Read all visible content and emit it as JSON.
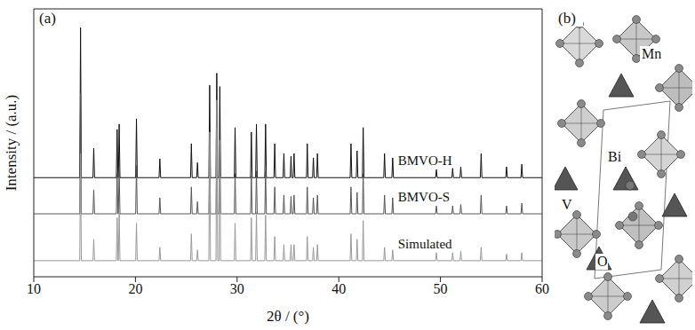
{
  "chart_data": {
    "type": "line",
    "annotations": [
      "(a)"
    ],
    "xlabel": "2θ / (°)",
    "ylabel": "Intensity / (a.u.)",
    "xlim": [
      10,
      60
    ],
    "xticks": [
      10,
      20,
      30,
      40,
      50,
      60
    ],
    "ylim": [
      0,
      100
    ],
    "tick_labels": "x",
    "grid": false,
    "x": [
      10,
      14.52,
      14.6,
      14.68,
      15.82,
      15.9,
      15.98,
      18.12,
      18.2,
      18.28,
      18.32,
      18.4,
      18.48,
      20.02,
      20.1,
      20.18,
      22.32,
      22.4,
      22.48,
      25.42,
      25.5,
      25.58,
      26.02,
      26.1,
      26.18,
      27.22,
      27.3,
      27.38,
      27.92,
      28,
      28.08,
      28.22,
      28.3,
      28.38,
      29.72,
      29.8,
      29.88,
      31.32,
      31.4,
      31.48,
      31.82,
      31.9,
      31.98,
      32.72,
      32.8,
      32.88,
      33.62,
      33.7,
      33.78,
      34.52,
      34.6,
      34.68,
      35.22,
      35.3,
      35.38,
      35.52,
      35.6,
      35.68,
      36.82,
      36.9,
      36.98,
      37.42,
      37.5,
      37.58,
      37.82,
      37.9,
      37.98,
      41.12,
      41.2,
      41.28,
      41.72,
      41.8,
      41.88,
      42.32,
      42.4,
      42.48,
      44.42,
      44.5,
      44.58,
      45.22,
      45.3,
      45.38,
      49.52,
      49.6,
      49.68,
      51.12,
      51.2,
      51.28,
      51.92,
      52,
      52.08,
      53.92,
      54,
      54.08,
      56.42,
      56.5,
      56.58,
      57.92,
      58,
      58.08,
      60
    ],
    "series": [
      {
        "name": "BMVO-H",
        "color": "#111111",
        "values": [
          37,
          37,
          93,
          37,
          37,
          48,
          37,
          37,
          55,
          37,
          37,
          57,
          37,
          37,
          59,
          37,
          37,
          44,
          37,
          37,
          49.7,
          37,
          37,
          42.6,
          37,
          37,
          71.5,
          37,
          37,
          76,
          37,
          37,
          71,
          37,
          37,
          55.7,
          37,
          37,
          54,
          37,
          37,
          57,
          37,
          37,
          57,
          37,
          37,
          49.7,
          37,
          37,
          46,
          37,
          37,
          45,
          37,
          37,
          46,
          37,
          37,
          49.7,
          37,
          37,
          44.4,
          37,
          37,
          46,
          37,
          37,
          49.7,
          37,
          37,
          47,
          37,
          37,
          55.7,
          37,
          37,
          46,
          37,
          37,
          44.4,
          37,
          37,
          40,
          37,
          37,
          40.5,
          37,
          37,
          41,
          37,
          37,
          46,
          37,
          37,
          41,
          37,
          37,
          42,
          37,
          37
        ]
      },
      {
        "name": "BMVO-S",
        "color": "#555555",
        "values": [
          23.5,
          23.5,
          68.5,
          23.5,
          23.5,
          32.5,
          23.5,
          23.5,
          38.5,
          23.5,
          23.5,
          39.5,
          23.5,
          23.5,
          41.5,
          23.5,
          23.5,
          29.5,
          23.5,
          23.5,
          33.5,
          23.5,
          23.5,
          28,
          23.5,
          23.5,
          51.5,
          23.5,
          23.5,
          55.5,
          23.5,
          23.5,
          51.5,
          23.5,
          23.5,
          38.5,
          23.5,
          23.5,
          37.5,
          23.5,
          23.5,
          39.5,
          23.5,
          23.5,
          39.5,
          23.5,
          23.5,
          33.5,
          23.5,
          23.5,
          30.5,
          23.5,
          23.5,
          30,
          23.5,
          23.5,
          30.5,
          23.5,
          23.5,
          33.5,
          23.5,
          23.5,
          29.5,
          23.5,
          23.5,
          30.5,
          23.5,
          23.5,
          33.5,
          23.5,
          23.5,
          31.5,
          23.5,
          23.5,
          38.5,
          23.5,
          23.5,
          30.5,
          23.5,
          23.5,
          29.5,
          23.5,
          23.5,
          26.5,
          23.5,
          23.5,
          26.5,
          23.5,
          23.5,
          27,
          23.5,
          23.5,
          30.5,
          23.5,
          23.5,
          26.5,
          23.5,
          23.5,
          27.5,
          23.5,
          23.5
        ]
      },
      {
        "name": "Simulated",
        "color": "#999999",
        "values": [
          6,
          6,
          46,
          6,
          6,
          14,
          6,
          6,
          22,
          6,
          6,
          24,
          6,
          6,
          20,
          6,
          6,
          11,
          6,
          6,
          16,
          6,
          6,
          10,
          6,
          6,
          54,
          6,
          6,
          66,
          6,
          6,
          51,
          6,
          6,
          20,
          6,
          6,
          22,
          6,
          6,
          24,
          6,
          6,
          23,
          6,
          6,
          15,
          6,
          6,
          12,
          6,
          6,
          12,
          6,
          6,
          12,
          6,
          6,
          15,
          6,
          6,
          11,
          6,
          6,
          12,
          6,
          6,
          16,
          6,
          6,
          14,
          6,
          6,
          21,
          6,
          6,
          11,
          6,
          6,
          10,
          6,
          6,
          9,
          6,
          6,
          9,
          6,
          6,
          9.5,
          6,
          6,
          11,
          6,
          6,
          8.5,
          6,
          6,
          9,
          6,
          6
        ]
      }
    ]
  },
  "structure": {
    "label": "(b)",
    "atoms": [
      "Mn",
      "Bi",
      "V",
      "O"
    ]
  }
}
